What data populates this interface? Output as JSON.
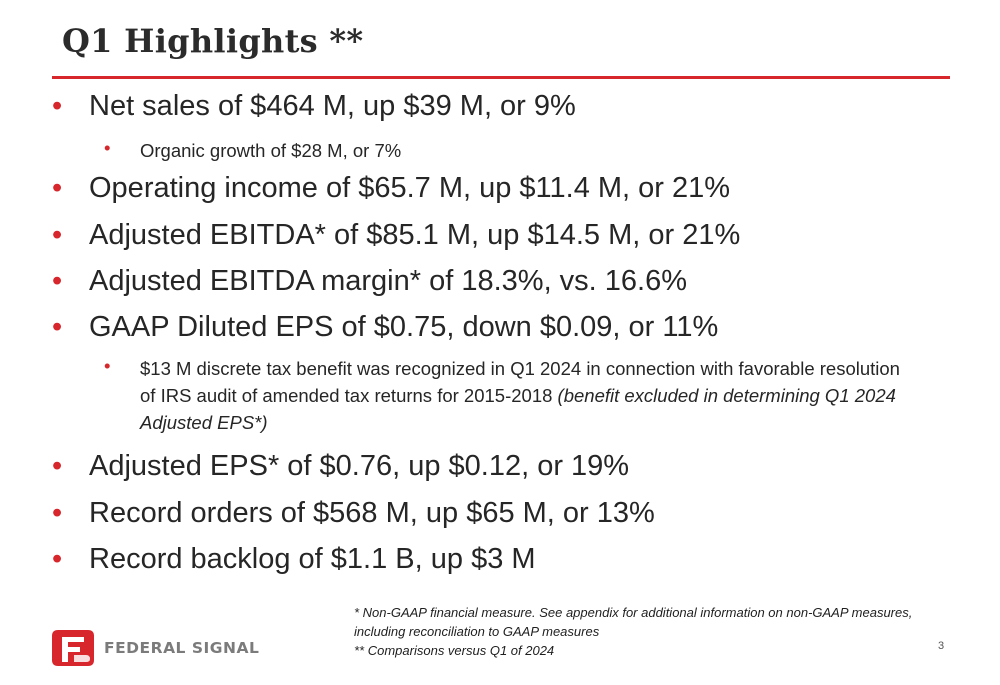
{
  "slide": {
    "title": "Q1 Highlights **",
    "page_number": "3",
    "accent_color": "#d7262c"
  },
  "bullets": [
    {
      "level": 1,
      "text": "Net sales of $464 M, up $39 M, or 9%"
    },
    {
      "level": 2,
      "text": "Organic growth of $28 M, or 7%"
    },
    {
      "level": 1,
      "text": "Operating income of $65.7 M, up $11.4 M, or 21%"
    },
    {
      "level": 1,
      "text": "Adjusted EBITDA* of $85.1 M, up $14.5 M, or 21%"
    },
    {
      "level": 1,
      "text": "Adjusted EBITDA margin* of 18.3%, vs. 16.6%"
    },
    {
      "level": 1,
      "text": "GAAP Diluted EPS of $0.75, down $0.09, or 11%"
    },
    {
      "level": 2,
      "text": "$13 M discrete tax benefit was recognized in Q1 2024 in connection with favorable resolution of IRS audit of amended tax returns for 2015-2018 ",
      "italic_suffix": "(benefit excluded in determining Q1 2024 Adjusted EPS*)"
    },
    {
      "level": 1,
      "text": "Adjusted EPS* of $0.76, up $0.12, or 19%"
    },
    {
      "level": 1,
      "text": "Record orders of $568 M, up $65 M, or 13%"
    },
    {
      "level": 1,
      "text": "Record backlog of $1.1 B, up $3 M"
    }
  ],
  "footnotes": [
    "* Non-GAAP financial measure. See appendix for additional information on non-GAAP measures, including reconciliation to GAAP measures",
    "** Comparisons versus Q1 of 2024"
  ],
  "logo": {
    "text": "FEDERAL SIGNAL",
    "icon": "federal-signal-logo-icon"
  }
}
